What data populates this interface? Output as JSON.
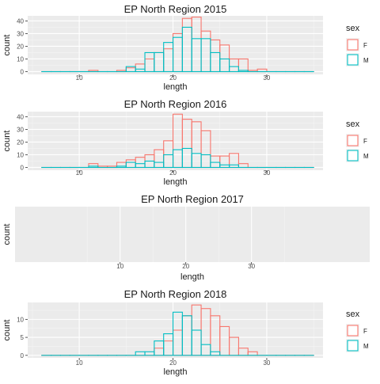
{
  "colors": {
    "F": "#F8766D",
    "M": "#00BFC4",
    "panel": "#EBEBEB",
    "grid_major": "#FFFFFF",
    "grid_minor": "#F5F5F5",
    "text": "#1A1A1A",
    "tick": "#4D4D4D"
  },
  "chart_data": [
    {
      "type": "histogram",
      "title": "EP North Region 2015",
      "xlabel": "length",
      "ylabel": "count",
      "xlim": [
        4.5,
        36
      ],
      "ylim": [
        -2.2,
        44
      ],
      "xticks": [
        10,
        20,
        30
      ],
      "yticks": [
        0,
        10,
        20,
        30,
        40
      ],
      "bin_edges": [
        6,
        7,
        8,
        9,
        10,
        11,
        12,
        13,
        14,
        15,
        16,
        17,
        18,
        19,
        20,
        21,
        22,
        23,
        24,
        25,
        26,
        27,
        28,
        29,
        30,
        31,
        32,
        33,
        34,
        35
      ],
      "legend": {
        "title": "sex",
        "entries": [
          "F",
          "M"
        ]
      },
      "series": [
        {
          "name": "F",
          "values": [
            0,
            0,
            0,
            0,
            0,
            1,
            0,
            0,
            1,
            3,
            6,
            10,
            15,
            18,
            30,
            42,
            43,
            32,
            25,
            21,
            10,
            10,
            1,
            2,
            0,
            0,
            0,
            0,
            0
          ]
        },
        {
          "name": "M",
          "values": [
            0,
            0,
            0,
            0,
            0,
            0,
            0,
            0,
            0,
            4,
            2,
            15,
            15,
            23,
            27,
            35,
            26,
            26,
            15,
            10,
            4,
            1,
            0,
            0,
            0,
            0,
            0,
            0,
            0
          ]
        }
      ]
    },
    {
      "type": "histogram",
      "title": "EP North Region 2016",
      "xlabel": "length",
      "ylabel": "count",
      "xlim": [
        4.5,
        36
      ],
      "ylim": [
        -2.2,
        44
      ],
      "xticks": [
        10,
        20,
        30
      ],
      "yticks": [
        0,
        10,
        20,
        30,
        40
      ],
      "bin_edges": [
        6,
        7,
        8,
        9,
        10,
        11,
        12,
        13,
        14,
        15,
        16,
        17,
        18,
        19,
        20,
        21,
        22,
        23,
        24,
        25,
        26,
        27,
        28,
        29,
        30,
        31,
        32,
        33,
        34,
        35
      ],
      "legend": {
        "title": "sex",
        "entries": [
          "F",
          "M"
        ]
      },
      "series": [
        {
          "name": "F",
          "values": [
            0,
            0,
            0,
            0,
            0,
            3,
            1,
            1,
            4,
            6,
            8,
            10,
            14,
            21,
            42,
            38,
            36,
            29,
            9,
            9,
            11,
            3,
            0,
            0,
            0,
            0,
            0,
            0,
            0
          ]
        },
        {
          "name": "M",
          "values": [
            0,
            0,
            0,
            0,
            0,
            1,
            0,
            0,
            1,
            4,
            3,
            5,
            4,
            10,
            14,
            15,
            11,
            10,
            4,
            2,
            2,
            0,
            0,
            0,
            0,
            0,
            0,
            0,
            0
          ]
        }
      ]
    },
    {
      "type": "histogram",
      "title": "EP North Region 2017",
      "xlabel": "length",
      "ylabel": "count",
      "xticks": [
        10,
        20,
        30
      ],
      "yticks": [],
      "series": []
    },
    {
      "type": "histogram",
      "title": "EP North Region 2018",
      "xlabel": "length",
      "ylabel": "count",
      "xlim": [
        4.5,
        36
      ],
      "ylim": [
        -0.7,
        14.7
      ],
      "xticks": [
        10,
        20,
        30
      ],
      "yticks": [
        0,
        5,
        10
      ],
      "bin_edges": [
        6,
        7,
        8,
        9,
        10,
        11,
        12,
        13,
        14,
        15,
        16,
        17,
        18,
        19,
        20,
        21,
        22,
        23,
        24,
        25,
        26,
        27,
        28,
        29,
        30,
        31,
        32,
        33,
        34,
        35
      ],
      "legend": {
        "title": "sex",
        "entries": [
          "F",
          "M"
        ]
      },
      "series": [
        {
          "name": "F",
          "values": [
            0,
            0,
            0,
            0,
            0,
            0,
            0,
            0,
            0,
            0,
            0,
            0,
            2,
            4,
            7,
            11,
            14,
            13,
            11,
            8,
            5,
            2,
            1,
            0,
            0,
            0,
            0,
            0,
            0
          ]
        },
        {
          "name": "M",
          "values": [
            0,
            0,
            0,
            0,
            0,
            0,
            0,
            0,
            0,
            0,
            1,
            1,
            4,
            6,
            12,
            11,
            7,
            3,
            1,
            0,
            0,
            0,
            0,
            0,
            0,
            0,
            0,
            0,
            0
          ]
        }
      ]
    }
  ]
}
